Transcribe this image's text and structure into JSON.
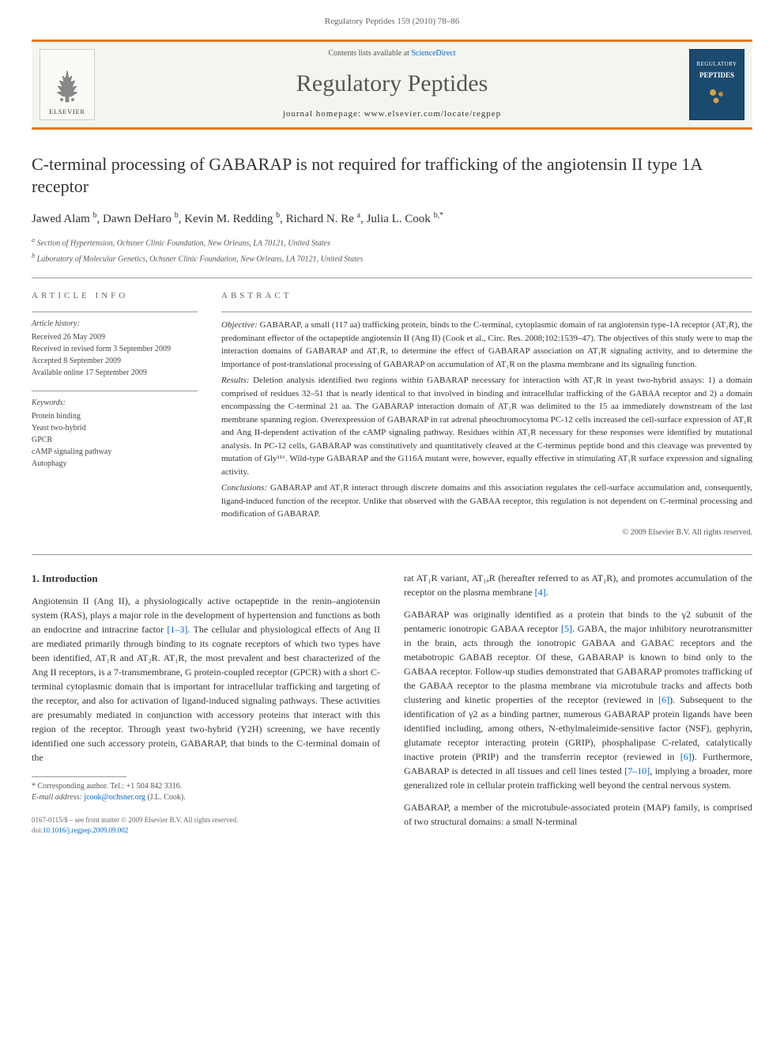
{
  "running_header": "Regulatory Peptides 159 (2010) 78–86",
  "banner": {
    "elsevier": "ELSEVIER",
    "contents_prefix": "Contents lists available at ",
    "contents_link": "ScienceDirect",
    "journal_name": "Regulatory Peptides",
    "homepage_prefix": "journal homepage: ",
    "homepage_url": "www.elsevier.com/locate/regpep",
    "cover_tag": "REGULATORY",
    "cover_title": "PEPTIDES"
  },
  "article": {
    "title": "C-terminal processing of GABARAP is not required for trafficking of the angiotensin II type 1A receptor",
    "authors_html": "Jawed Alam <sup>b</sup>, Dawn DeHaro <sup>b</sup>, Kevin M. Redding <sup>b</sup>, Richard N. Re <sup>a</sup>, Julia L. Cook <sup>b,*</sup>",
    "affil_a": "a Section of Hypertension, Ochsner Clinic Foundation, New Orleans, LA 70121, United States",
    "affil_b": "b Laboratory of Molecular Genetics, Ochsner Clinic Foundation, New Orleans, LA 70121, United States"
  },
  "info": {
    "label": "ARTICLE INFO",
    "history_heading": "Article history:",
    "history": "Received 26 May 2009\nReceived in revised form 3 September 2009\nAccepted 8 September 2009\nAvailable online 17 September 2009",
    "keywords_heading": "Keywords:",
    "keywords": "Protein binding\nYeast two-hybrid\nGPCR\ncAMP signaling pathway\nAutophagy"
  },
  "abstract": {
    "label": "ABSTRACT",
    "objective_label": "Objective:",
    "objective": "GABARAP, a small (117 aa) trafficking protein, binds to the C-terminal, cytoplasmic domain of rat angiotensin type-1A receptor (AT₁R), the predominant effector of the octapeptide angiotensin II (Ang II) (Cook et al., Circ. Res. 2008;102:1539–47). The objectives of this study were to map the interaction domains of GABARAP and AT₁R, to determine the effect of GABARAP association on AT₁R signaling activity, and to determine the importance of post-translational processing of GABARAP on accumulation of AT₁R on the plasma membrane and its signaling function.",
    "results_label": "Results:",
    "results": "Deletion analysis identified two regions within GABARAP necessary for interaction with AT₁R in yeast two-hybrid assays: 1) a domain comprised of residues 32–51 that is nearly identical to that involved in binding and intracellular trafficking of the GABAA receptor and 2) a domain encompassing the C-terminal 21 aa. The GABARAP interaction domain of AT₁R was delimited to the 15 aa immediately downstream of the last membrane spanning region. Overexpression of GABARAP in rat adrenal pheochromocytoma PC-12 cells increased the cell-surface expression of AT₁R and Ang II-dependent activation of the cAMP signaling pathway. Residues within AT₁R necessary for these responses were identified by mutational analysis. In PC-12 cells, GABARAP was constitutively and quantitatively cleaved at the C-terminus peptide bond and this cleavage was prevented by mutation of Gly¹¹⁶. Wild-type GABARAP and the G116A mutant were, however, equally effective in stimulating AT₁R surface expression and signaling activity.",
    "conclusions_label": "Conclusions:",
    "conclusions": "GABARAP and AT₁R interact through discrete domains and this association regulates the cell-surface accumulation and, consequently, ligand-induced function of the receptor. Unlike that observed with the GABAA receptor, this regulation is not dependent on C-terminal processing and modification of GABARAP.",
    "copyright": "© 2009 Elsevier B.V. All rights reserved."
  },
  "body": {
    "intro_heading": "1. Introduction",
    "col1_p1": "Angiotensin II (Ang II), a physiologically active octapeptide in the renin–angiotensin system (RAS), plays a major role in the development of hypertension and functions as both an endocrine and intracrine factor [1–3]. The cellular and physiological effects of Ang II are mediated primarily through binding to its cognate receptors of which two types have been identified, AT₁R and AT₂R. AT₁R, the most prevalent and best characterized of the Ang II receptors, is a 7-transmembrane, G protein-coupled receptor (GPCR) with a short C-terminal cytoplasmic domain that is important for intracellular trafficking and targeting of the receptor, and also for activation of ligand-induced signaling pathways. These activities are presumably mediated in conjunction with accessory proteins that interact with this region of the receptor. Through yeast two-hybrid (Y2H) screening, we have recently identified one such accessory protein, GABARAP, that binds to the C-terminal domain of the",
    "col2_p1": "rat AT₁R variant, AT₁ₐR (hereafter referred to as AT₁R), and promotes accumulation of the receptor on the plasma membrane [4].",
    "col2_p2": "GABARAP was originally identified as a protein that binds to the γ2 subunit of the pentameric ionotropic GABAA receptor [5]. GABA, the major inhibitory neurotransmitter in the brain, acts through the ionotropic GABAA and GABAC receptors and the metabotropic GABAB receptor. Of these, GABARAP is known to bind only to the GABAA receptor. Follow-up studies demonstrated that GABARAP promotes trafficking of the GABAA receptor to the plasma membrane via microtubule tracks and affects both clustering and kinetic properties of the receptor (reviewed in [6]). Subsequent to the identification of γ2 as a binding partner, numerous GABARAP protein ligands have been identified including, among others, N-ethylmaleimide-sensitive factor (NSF), gephyrin, glutamate receptor interacting protein (GRIP), phosphalipase C-related, catalytically inactive protein (PRIP) and the transferrin receptor (reviewed in [6]). Furthermore, GABARAP is detected in all tissues and cell lines tested [7–10], implying a broader, more generalized role in cellular protein trafficking well beyond the central nervous system.",
    "col2_p3": "GABARAP, a member of the microtubule-associated protein (MAP) family, is comprised of two structural domains: a small N-terminal"
  },
  "footnote": {
    "corresponding": "* Corresponding author. Tel.: +1 504 842 3316.",
    "email_label": "E-mail address: ",
    "email": "jcook@ochsner.org",
    "email_name": " (J.L. Cook)."
  },
  "bottom": {
    "issn": "0167-0115/$ – see front matter © 2009 Elsevier B.V. All rights reserved.",
    "doi_label": "doi:",
    "doi": "10.1016/j.regpep.2009.09.002"
  },
  "colors": {
    "accent": "#e67817",
    "link": "#0066cc",
    "banner_bg": "#f5f5f0",
    "cover_bg": "#1a4a6e"
  }
}
